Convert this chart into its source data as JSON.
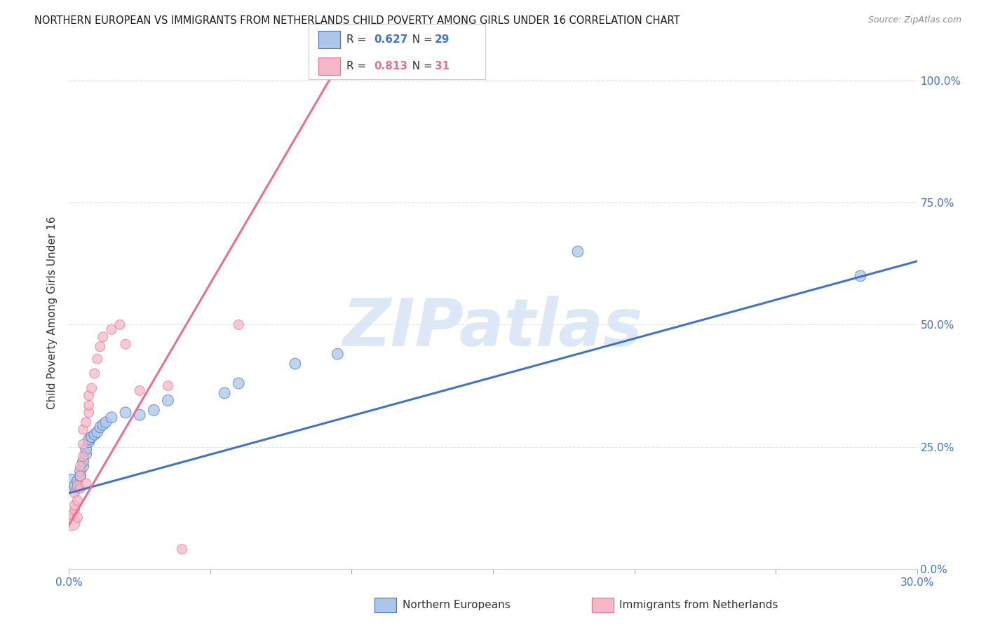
{
  "title": "NORTHERN EUROPEAN VS IMMIGRANTS FROM NETHERLANDS CHILD POVERTY AMONG GIRLS UNDER 16 CORRELATION CHART",
  "source": "Source: ZipAtlas.com",
  "ylabel": "Child Poverty Among Girls Under 16",
  "xlim": [
    0.0,
    0.3
  ],
  "ylim": [
    0.0,
    1.05
  ],
  "xticks": [
    0.0,
    0.05,
    0.1,
    0.15,
    0.2,
    0.25,
    0.3
  ],
  "xtick_labels": [
    "0.0%",
    "",
    "",
    "",
    "",
    "",
    "30.0%"
  ],
  "yticks_right": [
    0.0,
    0.25,
    0.5,
    0.75,
    1.0
  ],
  "ytick_labels_right": [
    "0.0%",
    "25.0%",
    "50.0%",
    "75.0%",
    "100.0%"
  ],
  "blue_R": 0.627,
  "blue_N": 29,
  "pink_R": 0.813,
  "pink_N": 31,
  "blue_color": "#adc6e8",
  "pink_color": "#f5b8c8",
  "blue_line_color": "#4472c4",
  "pink_line_color": "#e87090",
  "blue_label": "Northern Europeans",
  "pink_label": "Immigrants from Netherlands",
  "watermark": "ZIPatlas",
  "watermark_color": "#dce8f5",
  "background_color": "#ffffff",
  "grid_color": "#dddddd",
  "blue_scatter": [
    [
      0.001,
      0.175
    ],
    [
      0.002,
      0.17
    ],
    [
      0.003,
      0.165
    ],
    [
      0.003,
      0.18
    ],
    [
      0.004,
      0.19
    ],
    [
      0.004,
      0.2
    ],
    [
      0.005,
      0.21
    ],
    [
      0.005,
      0.22
    ],
    [
      0.006,
      0.235
    ],
    [
      0.006,
      0.245
    ],
    [
      0.007,
      0.26
    ],
    [
      0.007,
      0.265
    ],
    [
      0.008,
      0.27
    ],
    [
      0.009,
      0.275
    ],
    [
      0.01,
      0.28
    ],
    [
      0.011,
      0.29
    ],
    [
      0.012,
      0.295
    ],
    [
      0.013,
      0.3
    ],
    [
      0.015,
      0.31
    ],
    [
      0.02,
      0.32
    ],
    [
      0.025,
      0.315
    ],
    [
      0.03,
      0.325
    ],
    [
      0.035,
      0.345
    ],
    [
      0.055,
      0.36
    ],
    [
      0.06,
      0.38
    ],
    [
      0.08,
      0.42
    ],
    [
      0.095,
      0.44
    ],
    [
      0.18,
      0.65
    ],
    [
      0.28,
      0.6
    ]
  ],
  "pink_scatter": [
    [
      0.001,
      0.095
    ],
    [
      0.001,
      0.11
    ],
    [
      0.002,
      0.12
    ],
    [
      0.002,
      0.13
    ],
    [
      0.002,
      0.155
    ],
    [
      0.003,
      0.14
    ],
    [
      0.003,
      0.105
    ],
    [
      0.003,
      0.17
    ],
    [
      0.004,
      0.19
    ],
    [
      0.004,
      0.21
    ],
    [
      0.004,
      0.165
    ],
    [
      0.005,
      0.23
    ],
    [
      0.005,
      0.255
    ],
    [
      0.005,
      0.285
    ],
    [
      0.006,
      0.3
    ],
    [
      0.006,
      0.175
    ],
    [
      0.007,
      0.32
    ],
    [
      0.007,
      0.335
    ],
    [
      0.007,
      0.355
    ],
    [
      0.008,
      0.37
    ],
    [
      0.009,
      0.4
    ],
    [
      0.01,
      0.43
    ],
    [
      0.011,
      0.455
    ],
    [
      0.012,
      0.475
    ],
    [
      0.015,
      0.49
    ],
    [
      0.018,
      0.5
    ],
    [
      0.02,
      0.46
    ],
    [
      0.025,
      0.365
    ],
    [
      0.035,
      0.375
    ],
    [
      0.04,
      0.04
    ],
    [
      0.06,
      0.5
    ]
  ],
  "blue_line_x": [
    0.0,
    0.3
  ],
  "blue_line_y": [
    0.155,
    0.63
  ],
  "pink_line_x": [
    -0.002,
    0.095
  ],
  "pink_line_y": [
    0.07,
    1.03
  ]
}
